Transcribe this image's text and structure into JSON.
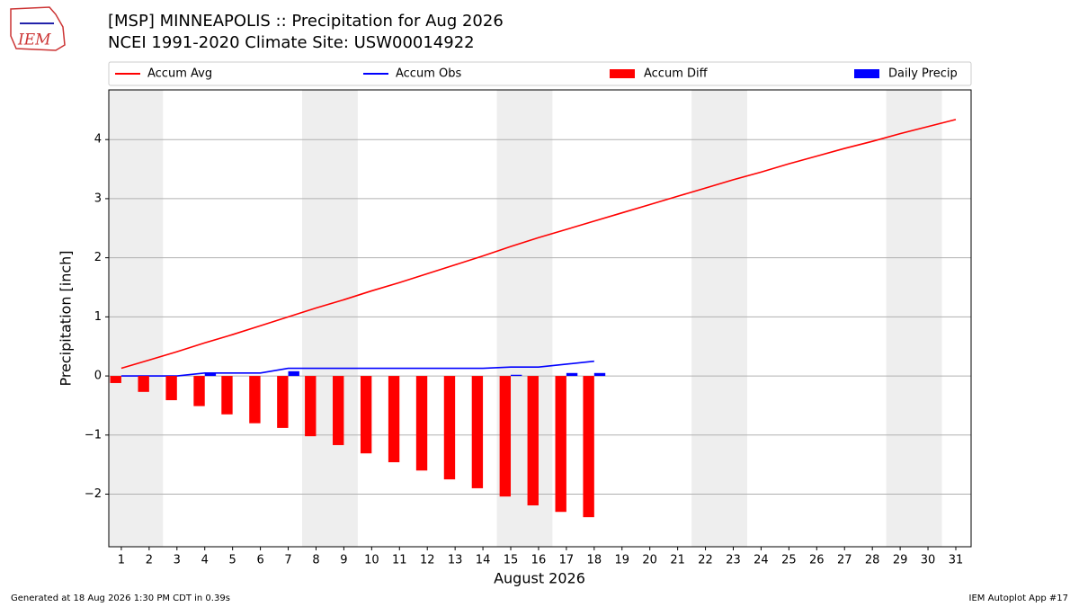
{
  "chart_data": {
    "type": "line",
    "title": "[MSP] MINNEAPOLIS :: Precipitation for Aug 2026",
    "subtitle": "NCEI 1991-2020 Climate Site: USW00014922",
    "xlabel": "August 2026",
    "ylabel": "Precipitation [inch]",
    "footer_left": "Generated at 18 Aug 2026 1:30 PM CDT in 0.39s",
    "footer_right": "IEM Autoplot App #17",
    "logo": "IEM",
    "x": [
      1,
      2,
      3,
      4,
      5,
      6,
      7,
      8,
      9,
      10,
      11,
      12,
      13,
      14,
      15,
      16,
      17,
      18,
      19,
      20,
      21,
      22,
      23,
      24,
      25,
      26,
      27,
      28,
      29,
      30,
      31
    ],
    "xlim": [
      0.55,
      31.55
    ],
    "xticks": [
      1,
      2,
      3,
      4,
      5,
      6,
      7,
      8,
      9,
      10,
      11,
      12,
      13,
      14,
      15,
      16,
      17,
      18,
      19,
      20,
      21,
      22,
      23,
      24,
      25,
      26,
      27,
      28,
      29,
      30,
      31
    ],
    "ylim": [
      -2.89,
      4.84
    ],
    "yticks": [
      {
        "value": -2,
        "label": "−2"
      },
      {
        "value": -1,
        "label": "−1"
      },
      0,
      1,
      2,
      3,
      4
    ],
    "grid": true,
    "series": [
      {
        "name": "Accum Avg",
        "type": "line",
        "color": "#ff0000",
        "values": [
          0.13,
          0.27,
          0.41,
          0.56,
          0.7,
          0.85,
          1.0,
          1.15,
          1.29,
          1.44,
          1.58,
          1.73,
          1.88,
          2.03,
          2.19,
          2.34,
          2.48,
          2.62,
          2.76,
          2.9,
          3.04,
          3.18,
          3.32,
          3.45,
          3.59,
          3.72,
          3.85,
          3.97,
          4.1,
          4.22,
          4.34
        ]
      },
      {
        "name": "Accum Obs",
        "type": "line",
        "color": "#0000ff",
        "values": [
          0,
          0,
          0,
          0.05,
          0.05,
          0.05,
          0.13,
          0.13,
          0.13,
          0.13,
          0.13,
          0.13,
          0.13,
          0.13,
          0.15,
          0.15,
          0.2,
          0.25,
          null,
          null,
          null,
          null,
          null,
          null,
          null,
          null,
          null,
          null,
          null,
          null,
          null
        ]
      },
      {
        "name": "Accum Diff",
        "type": "bar",
        "color": "#ff0000",
        "values": [
          -0.12,
          -0.27,
          -0.41,
          -0.51,
          -0.65,
          -0.8,
          -0.88,
          -1.02,
          -1.17,
          -1.31,
          -1.46,
          -1.6,
          -1.75,
          -1.9,
          -2.04,
          -2.19,
          -2.3,
          -2.39,
          null,
          null,
          null,
          null,
          null,
          null,
          null,
          null,
          null,
          null,
          null,
          null,
          null
        ]
      },
      {
        "name": "Daily Precip",
        "type": "bar",
        "color": "#0000ff",
        "values": [
          0,
          0,
          0,
          0.05,
          0,
          0,
          0.08,
          0,
          0,
          0,
          0,
          0,
          0,
          0,
          0.02,
          0,
          0.05,
          0.05,
          null,
          null,
          null,
          null,
          null,
          null,
          null,
          null,
          null,
          null,
          null,
          null,
          null
        ]
      }
    ]
  }
}
